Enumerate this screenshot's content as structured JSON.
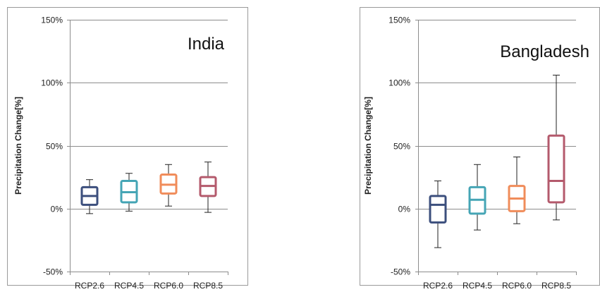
{
  "chart_data": [
    {
      "type": "box",
      "title": "India",
      "ylabel": "Precipitation Change[%]",
      "ylim": [
        -50,
        150
      ],
      "yticks": [
        -50,
        0,
        50,
        100,
        150
      ],
      "ytick_labels": [
        "-50%",
        "0%",
        "50%",
        "100%",
        "150%"
      ],
      "grid": true,
      "categories": [
        "RCP2.6",
        "RCP4.5",
        "RCP6.0",
        "RCP8.5"
      ],
      "colors": [
        "#3c4f7d",
        "#45a5b5",
        "#f08c5a",
        "#b45a6c"
      ],
      "boxes": [
        {
          "min": -4,
          "q1": 3,
          "median": 10,
          "q3": 17,
          "max": 23
        },
        {
          "min": -2,
          "q1": 5,
          "median": 13,
          "q3": 22,
          "max": 28
        },
        {
          "min": 2,
          "q1": 12,
          "median": 19,
          "q3": 27,
          "max": 35
        },
        {
          "min": -3,
          "q1": 10,
          "median": 18,
          "q3": 25,
          "max": 37
        }
      ]
    },
    {
      "type": "box",
      "title": "Bangladesh",
      "ylabel": "Precipitation Change[%]",
      "ylim": [
        -50,
        150
      ],
      "yticks": [
        -50,
        0,
        50,
        100,
        150
      ],
      "ytick_labels": [
        "-50%",
        "0%",
        "50%",
        "100%",
        "150%"
      ],
      "grid": true,
      "categories": [
        "RCP2.6",
        "RCP4.5",
        "RCP6.0",
        "RCP8.5"
      ],
      "colors": [
        "#3c4f7d",
        "#45a5b5",
        "#f08c5a",
        "#b45a6c"
      ],
      "boxes": [
        {
          "min": -31,
          "q1": -11,
          "median": 3,
          "q3": 10,
          "max": 22
        },
        {
          "min": -17,
          "q1": -4,
          "median": 7,
          "q3": 17,
          "max": 35
        },
        {
          "min": -12,
          "q1": -2,
          "median": 8,
          "q3": 18,
          "max": 41
        },
        {
          "min": -9,
          "q1": 5,
          "median": 22,
          "q3": 58,
          "max": 106
        }
      ]
    }
  ]
}
